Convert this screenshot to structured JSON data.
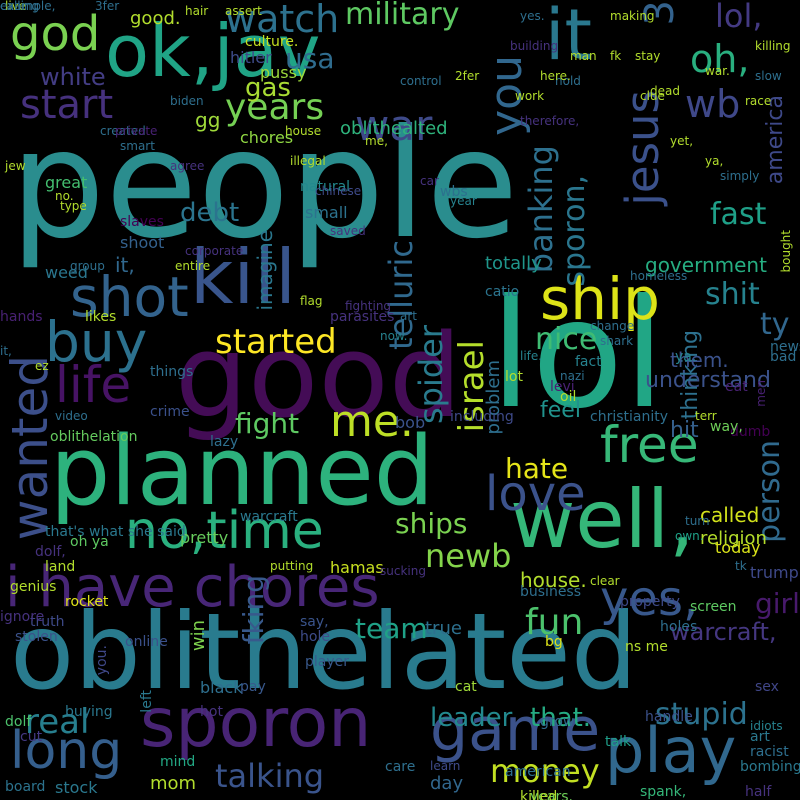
{
  "words": [
    {
      "text": "people",
      "color": "#2a8d8e"
    },
    {
      "text": "lol",
      "color": "#21a685"
    },
    {
      "text": "oblithelated",
      "color": "#297b8e"
    },
    {
      "text": "planned",
      "color": "#2db27d"
    },
    {
      "text": "good",
      "color": "#440c56"
    },
    {
      "text": "ok,jav",
      "color": "#20a486"
    },
    {
      "text": "kill",
      "color": "#39558c"
    },
    {
      "text": "well,",
      "color": "#35b779"
    },
    {
      "text": "sporon",
      "color": "#482475"
    },
    {
      "text": "i have chores",
      "color": "#482677"
    },
    {
      "text": "no,time",
      "color": "#2ab07f"
    },
    {
      "text": "it",
      "color": "#2a788e"
    },
    {
      "text": "game",
      "color": "#3b528b"
    },
    {
      "text": "play",
      "color": "#31688e"
    },
    {
      "text": "long",
      "color": "#355f8d"
    },
    {
      "text": "ship",
      "color": "#dde318"
    },
    {
      "text": "shot",
      "color": "#33638d"
    },
    {
      "text": "buy",
      "color": "#2c718e"
    },
    {
      "text": "free",
      "color": "#37b878"
    },
    {
      "text": "life",
      "color": "#471365"
    },
    {
      "text": "love",
      "color": "#3b528b"
    },
    {
      "text": "yes,",
      "color": "#38588c"
    },
    {
      "text": "wanted",
      "color": "#3c4f8a"
    },
    {
      "text": "war",
      "color": "#3e4a89"
    },
    {
      "text": "god",
      "color": "#7ad151"
    },
    {
      "text": "you",
      "color": "#31678e"
    },
    {
      "text": "jesus",
      "color": "#3b518b"
    },
    {
      "text": "me.",
      "color": "#bddf26"
    },
    {
      "text": "start",
      "color": "#46317e"
    },
    {
      "text": "watch",
      "color": "#2d718e"
    },
    {
      "text": "years",
      "color": "#75d054"
    },
    {
      "text": "military",
      "color": "#5ec962"
    },
    {
      "text": "oh,",
      "color": "#29af7f"
    },
    {
      "text": "3",
      "color": "#33628d"
    },
    {
      "text": "lol,",
      "color": "#443a83"
    },
    {
      "text": "wb",
      "color": "#3f4889"
    },
    {
      "text": "usa",
      "color": "#2f6c8e"
    },
    {
      "text": "white",
      "color": "#433d84"
    },
    {
      "text": "america",
      "color": "#3e4989"
    },
    {
      "text": "started",
      "color": "#fde725"
    },
    {
      "text": "fight",
      "color": "#5ec962"
    },
    {
      "text": "money",
      "color": "#c2df23"
    },
    {
      "text": "talking",
      "color": "#3a548c"
    },
    {
      "text": "stupid",
      "color": "#2c728e"
    },
    {
      "text": "real",
      "color": "#277f8e"
    },
    {
      "text": "shit",
      "color": "#26828e"
    },
    {
      "text": "fun",
      "color": "#4cc26c"
    },
    {
      "text": "newb",
      "color": "#84d44b"
    },
    {
      "text": "israel",
      "color": "#b5de2b"
    },
    {
      "text": "spider",
      "color": "#297b8e"
    },
    {
      "text": "telluric",
      "color": "#30698e"
    },
    {
      "text": "banking",
      "color": "#2d708e"
    },
    {
      "text": "sporon,",
      "color": "#2a768e"
    },
    {
      "text": "nice",
      "color": "#3fbc73"
    },
    {
      "text": "fast",
      "color": "#1fa088"
    },
    {
      "text": "ty",
      "color": "#31678e"
    },
    {
      "text": "hate",
      "color": "#e5e419"
    },
    {
      "text": "ships",
      "color": "#7ad151"
    },
    {
      "text": "person",
      "color": "#306a8e"
    },
    {
      "text": "girl",
      "color": "#481a6c"
    },
    {
      "text": "warcraft,",
      "color": "#453781"
    },
    {
      "text": "team",
      "color": "#1fa187"
    },
    {
      "text": "fking",
      "color": "#38598c"
    },
    {
      "text": "leader",
      "color": "#23898e"
    },
    {
      "text": "that.",
      "color": "#25ab82"
    },
    {
      "text": "debt",
      "color": "#2b748e"
    },
    {
      "text": "gas",
      "color": "#a8db34"
    },
    {
      "text": "gg",
      "color": "#9fda3a"
    },
    {
      "text": "feel",
      "color": "#20928c"
    },
    {
      "text": "understand",
      "color": "#3b528b"
    },
    {
      "text": "government",
      "color": "#26ad81"
    },
    {
      "text": "totally",
      "color": "#1f968b"
    },
    {
      "text": "imagine",
      "color": "#2a778e"
    },
    {
      "text": "thinking",
      "color": "#2d708e"
    },
    {
      "text": "problem",
      "color": "#2e6f8e"
    },
    {
      "text": "them.",
      "color": "#3b528b"
    },
    {
      "text": "it,",
      "color": "#31688e"
    },
    {
      "text": "shoot",
      "color": "#34618d"
    },
    {
      "text": "weed",
      "color": "#2a768e"
    },
    {
      "text": "good.",
      "color": "#b2dd2d"
    },
    {
      "text": "culture.",
      "color": "#c5e021"
    },
    {
      "text": "hitler",
      "color": "#3e4c8a"
    },
    {
      "text": "pussy",
      "color": "#9dd93b"
    },
    {
      "text": "chores",
      "color": "#90d743"
    },
    {
      "text": "oblithealted",
      "color": "#2eb37c"
    },
    {
      "text": "great",
      "color": "#44bf70"
    },
    {
      "text": "natural",
      "color": "#23898e"
    },
    {
      "text": "small",
      "color": "#2c728e"
    },
    {
      "text": "wbs",
      "color": "#2c718e"
    },
    {
      "text": "catio",
      "color": "#2b748e"
    },
    {
      "text": "hit",
      "color": "#35608d"
    },
    {
      "text": "called",
      "color": "#d2e21b"
    },
    {
      "text": "religion",
      "color": "#b5de2b"
    },
    {
      "text": "today",
      "color": "#dae319"
    },
    {
      "text": "trump",
      "color": "#3e4989"
    },
    {
      "text": "house.",
      "color": "#b2dd2d"
    },
    {
      "text": "hamas",
      "color": "#c8e020"
    },
    {
      "text": "pretty",
      "color": "#67cc5c"
    },
    {
      "text": "that's what she said",
      "color": "#2a788e"
    },
    {
      "text": "warcraft",
      "color": "#2a788e"
    },
    {
      "text": "oh ya",
      "color": "#5ec962"
    },
    {
      "text": "land",
      "color": "#b2dd2d"
    },
    {
      "text": "dolf,",
      "color": "#46327e"
    },
    {
      "text": "genius",
      "color": "#b2dd2d"
    },
    {
      "text": "oblithelation",
      "color": "#65cb5e"
    },
    {
      "text": "crime",
      "color": "#3b518b"
    },
    {
      "text": "lazy",
      "color": "#2e6f8e"
    },
    {
      "text": "bob",
      "color": "#3b528b"
    },
    {
      "text": "win",
      "color": "#7fd34e"
    },
    {
      "text": "black",
      "color": "#2e6f8e"
    },
    {
      "text": "hole",
      "color": "#3e4c8a"
    },
    {
      "text": "true",
      "color": "#2d708e"
    },
    {
      "text": "day",
      "color": "#31678e"
    },
    {
      "text": "mom",
      "color": "#b2dd2d"
    },
    {
      "text": "stock",
      "color": "#2a788e"
    },
    {
      "text": "board",
      "color": "#2c738e"
    },
    {
      "text": "mind",
      "color": "#22a884"
    },
    {
      "text": "buying",
      "color": "#2a778e"
    },
    {
      "text": "cut",
      "color": "#443983"
    },
    {
      "text": "dolf",
      "color": "#4cc26c"
    },
    {
      "text": "hot",
      "color": "#46327e"
    },
    {
      "text": "cat",
      "color": "#a0da39"
    },
    {
      "text": "pay",
      "color": "#38588c"
    },
    {
      "text": "player",
      "color": "#38598c"
    },
    {
      "text": "left",
      "color": "#2a788e"
    },
    {
      "text": "online",
      "color": "#3b518b"
    },
    {
      "text": "you.",
      "color": "#3f4889"
    },
    {
      "text": "truth",
      "color": "#3e4a89"
    },
    {
      "text": "rocket",
      "color": "#dfe318"
    },
    {
      "text": "stolen",
      "color": "#3b528b"
    },
    {
      "text": "ignore",
      "color": "#46327e"
    },
    {
      "text": "say,",
      "color": "#3a548c"
    },
    {
      "text": "putting",
      "color": "#b2dd2d"
    },
    {
      "text": "sucking",
      "color": "#46327e"
    },
    {
      "text": "clear",
      "color": "#b2dd2d"
    },
    {
      "text": "business",
      "color": "#2e6f8e"
    },
    {
      "text": "property",
      "color": "#3e4a89"
    },
    {
      "text": "screen",
      "color": "#5ec962"
    },
    {
      "text": "holes",
      "color": "#2e6f8e"
    },
    {
      "text": "ns me",
      "color": "#b2dd2d"
    },
    {
      "text": "sex",
      "color": "#404688"
    },
    {
      "text": "bg",
      "color": "#dde318"
    },
    {
      "text": "handle",
      "color": "#3b518b"
    },
    {
      "text": "grow",
      "color": "#31688e"
    },
    {
      "text": "talk",
      "color": "#1f9e89"
    },
    {
      "text": "art",
      "color": "#2a788e"
    },
    {
      "text": "idiots",
      "color": "#26828e"
    },
    {
      "text": "racist",
      "color": "#2e6f8e"
    },
    {
      "text": "bombing",
      "color": "#2a788e"
    },
    {
      "text": "half",
      "color": "#46327e"
    },
    {
      "text": "spank,",
      "color": "#35b779"
    },
    {
      "text": "years.",
      "color": "#6ece58"
    },
    {
      "text": "killed",
      "color": "#b2dd2d"
    },
    {
      "text": "american",
      "color": "#2e6f8e"
    },
    {
      "text": "care",
      "color": "#2e6f8e"
    },
    {
      "text": "learn",
      "color": "#3e4a89"
    },
    {
      "text": "turn",
      "color": "#2e6f8e"
    },
    {
      "text": "own.",
      "color": "#1fa188"
    },
    {
      "text": "tk",
      "color": "#2e6f8e"
    },
    {
      "text": "dumb",
      "color": "#440154"
    },
    {
      "text": "way,",
      "color": "#6ece58"
    },
    {
      "text": "terr",
      "color": "#b2dd2d"
    },
    {
      "text": "eat",
      "color": "#482173"
    },
    {
      "text": "men",
      "color": "#482173"
    },
    {
      "text": "news",
      "color": "#2e6f8e"
    },
    {
      "text": "bad",
      "color": "#2e6f8e"
    },
    {
      "text": "ya.",
      "color": "#26828e"
    },
    {
      "text": "christianity",
      "color": "#2e6f8e"
    },
    {
      "text": "oil",
      "color": "#b2dd2d"
    },
    {
      "text": "levi",
      "color": "#482173"
    },
    {
      "text": "nazi",
      "color": "#2e6f8e"
    },
    {
      "text": "fact",
      "color": "#26828e"
    },
    {
      "text": "shark",
      "color": "#2e6f8e"
    },
    {
      "text": "change",
      "color": "#2e6f8e"
    },
    {
      "text": "life.",
      "color": "#26828e"
    },
    {
      "text": "lot",
      "color": "#b2dd2d"
    },
    {
      "text": "including",
      "color": "#3e4a89"
    },
    {
      "text": "homeless",
      "color": "#2e6f8e"
    },
    {
      "text": "bought",
      "color": "#b2dd2d"
    },
    {
      "text": "art",
      "color": "#2e6f8e"
    },
    {
      "text": "now.",
      "color": "#26828e"
    },
    {
      "text": "parasites",
      "color": "#46327e"
    },
    {
      "text": "flag",
      "color": "#b2dd2d"
    },
    {
      "text": "fighting",
      "color": "#46327e"
    },
    {
      "text": "likes",
      "color": "#b2dd2d"
    },
    {
      "text": "hands",
      "color": "#482173"
    },
    {
      "text": "it,",
      "color": "#2e6f8e"
    },
    {
      "text": "ez",
      "color": "#b2dd2d"
    },
    {
      "text": "things",
      "color": "#2e6f8e"
    },
    {
      "text": "video",
      "color": "#2e6f8e"
    },
    {
      "text": "corporate",
      "color": "#46327e"
    },
    {
      "text": "entire",
      "color": "#b2dd2d"
    },
    {
      "text": "group",
      "color": "#2e6f8e"
    },
    {
      "text": "slaves",
      "color": "#440154"
    },
    {
      "text": "saved",
      "color": "#46327e"
    },
    {
      "text": "chinese",
      "color": "#3e4a89"
    },
    {
      "text": "type",
      "color": "#b2dd2d"
    },
    {
      "text": "no.",
      "color": "#b2dd2d"
    },
    {
      "text": "jew",
      "color": "#b2dd2d"
    },
    {
      "text": "agree",
      "color": "#46327e"
    },
    {
      "text": "smart",
      "color": "#2e6f8e"
    },
    {
      "text": "created",
      "color": "#2e6f8e"
    },
    {
      "text": "private",
      "color": "#482173"
    },
    {
      "text": "biden",
      "color": "#2e6f8e"
    },
    {
      "text": "house",
      "color": "#b2dd2d"
    },
    {
      "text": "me,",
      "color": "#b2dd2d"
    },
    {
      "text": "illegal",
      "color": "#b2dd2d"
    },
    {
      "text": "car",
      "color": "#46327e"
    },
    {
      "text": "year",
      "color": "#26828e"
    },
    {
      "text": "ya,",
      "color": "#b2dd2d"
    },
    {
      "text": "simply",
      "color": "#2e6f8e"
    },
    {
      "text": "yet,",
      "color": "#b2dd2d"
    },
    {
      "text": "clue",
      "color": "#b2dd2d"
    },
    {
      "text": "race",
      "color": "#b2dd2d"
    },
    {
      "text": "slow",
      "color": "#2e6f8e"
    },
    {
      "text": "therefore,",
      "color": "#46327e"
    },
    {
      "text": "work",
      "color": "#b2dd2d"
    },
    {
      "text": "dead",
      "color": "#b2dd2d"
    },
    {
      "text": "hold",
      "color": "#2e6f8e"
    },
    {
      "text": "here.",
      "color": "#b2dd2d"
    },
    {
      "text": "2fer",
      "color": "#b2dd2d"
    },
    {
      "text": "control",
      "color": "#2e6f8e"
    },
    {
      "text": "building",
      "color": "#46327e"
    },
    {
      "text": "man",
      "color": "#b2dd2d"
    },
    {
      "text": "fk",
      "color": "#b2dd2d"
    },
    {
      "text": "stay",
      "color": "#b2dd2d"
    },
    {
      "text": "war.",
      "color": "#b2dd2d"
    },
    {
      "text": "killing",
      "color": "#b2dd2d"
    },
    {
      "text": "yes.",
      "color": "#2e6f8e"
    },
    {
      "text": "making",
      "color": "#b2dd2d"
    },
    {
      "text": "assert",
      "color": "#b2dd2d"
    },
    {
      "text": "hair",
      "color": "#b2dd2d"
    },
    {
      "text": "3fer",
      "color": "#2e6f8e"
    },
    {
      "text": "live",
      "color": "#b2dd2d"
    },
    {
      "text": "calling",
      "color": "#2e6f8e"
    },
    {
      "text": "example,",
      "color": "#2e6f8e"
    }
  ]
}
